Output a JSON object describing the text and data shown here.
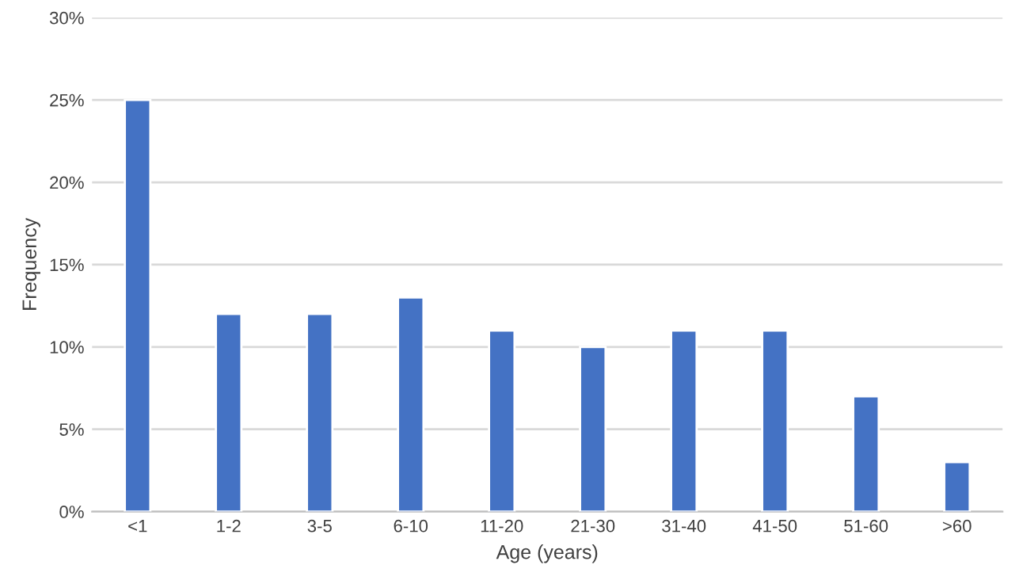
{
  "chart_data": {
    "type": "bar",
    "xlabel": "Age (years)",
    "ylabel": "Frequency",
    "categories": [
      "<1",
      "1-2",
      "3-5",
      "6-10",
      "11-20",
      "21-30",
      "31-40",
      "41-50",
      "51-60",
      ">60"
    ],
    "values": [
      25,
      12,
      12,
      13,
      11,
      10,
      11,
      11,
      7,
      3
    ],
    "color": "#4472c4",
    "ylim": [
      0,
      30
    ],
    "yticks": [
      {
        "value": 0,
        "label": "0%"
      },
      {
        "value": 5,
        "label": "5%"
      },
      {
        "value": 10,
        "label": "10%"
      },
      {
        "value": 15,
        "label": "15%"
      },
      {
        "value": 20,
        "label": "20%"
      },
      {
        "value": 25,
        "label": "25%"
      },
      {
        "value": 30,
        "label": "30%"
      }
    ],
    "grid": "y"
  }
}
